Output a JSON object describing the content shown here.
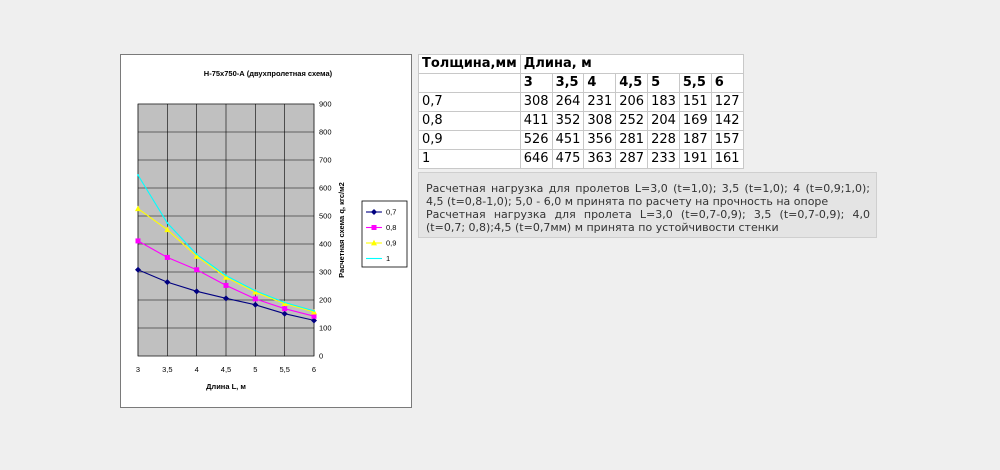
{
  "chart_data": {
    "type": "line",
    "title": "Н-75х750-А (двухпролетная схема)",
    "xlabel": "Длина L, м",
    "ylabel": "Расчетная схема q, кгс/м2",
    "x": [
      3,
      3.5,
      4,
      4.5,
      5,
      5.5,
      6
    ],
    "x_tick_labels": [
      "3",
      "3,5",
      "4",
      "4,5",
      "5",
      "5,5",
      "6"
    ],
    "xlim": [
      3,
      6
    ],
    "ylim": [
      0,
      900
    ],
    "y_ticks": [
      0,
      100,
      200,
      300,
      400,
      500,
      600,
      700,
      800,
      900
    ],
    "y_axis_side": "right",
    "grid": true,
    "plot_background": "#c0c0c0",
    "legend_position": "right",
    "series": [
      {
        "name": "0,7",
        "values": [
          308,
          264,
          231,
          206,
          183,
          151,
          127
        ],
        "color": "#000080",
        "marker": "diamond"
      },
      {
        "name": "0,8",
        "values": [
          411,
          352,
          308,
          252,
          204,
          169,
          142
        ],
        "color": "#ff00ff",
        "marker": "square"
      },
      {
        "name": "0,9",
        "values": [
          526,
          451,
          356,
          281,
          228,
          187,
          157
        ],
        "color": "#ffff00",
        "marker": "triangle"
      },
      {
        "name": "1",
        "values": [
          646,
          475,
          363,
          287,
          233,
          191,
          161
        ],
        "color": "#00ffff",
        "marker": "none"
      }
    ]
  },
  "table": {
    "header_thickness": "Толщина,мм",
    "header_length": "Длина, м",
    "lengths": [
      "3",
      "3,5",
      "4",
      "4,5",
      "5",
      "5,5",
      "6"
    ],
    "rows": [
      {
        "thickness": "0,7",
        "values": [
          "308",
          "264",
          "231",
          "206",
          "183",
          "151",
          "127"
        ]
      },
      {
        "thickness": "0,8",
        "values": [
          "411",
          "352",
          "308",
          "252",
          "204",
          "169",
          "142"
        ]
      },
      {
        "thickness": "0,9",
        "values": [
          "526",
          "451",
          "356",
          "281",
          "228",
          "187",
          "157"
        ]
      },
      {
        "thickness": "1",
        "values": [
          "646",
          "475",
          "363",
          "287",
          "233",
          "191",
          "161"
        ]
      }
    ]
  },
  "notes": {
    "line1": "Расчетная нагрузка для пролетов L=3,0 (t=1,0); 3,5 (t=1,0); 4 (t=0,9;1,0); 4,5 (t=0,8-1,0); 5,0 - 6,0 м принята по расчету на прочность на опоре",
    "line2": "Расчетная нагрузка для пролета L=3,0 (t=0,7-0,9); 3,5 (t=0,7-0,9); 4,0 (t=0,7; 0,8);4,5 (t=0,7мм) м принята по устойчивости стенки"
  }
}
